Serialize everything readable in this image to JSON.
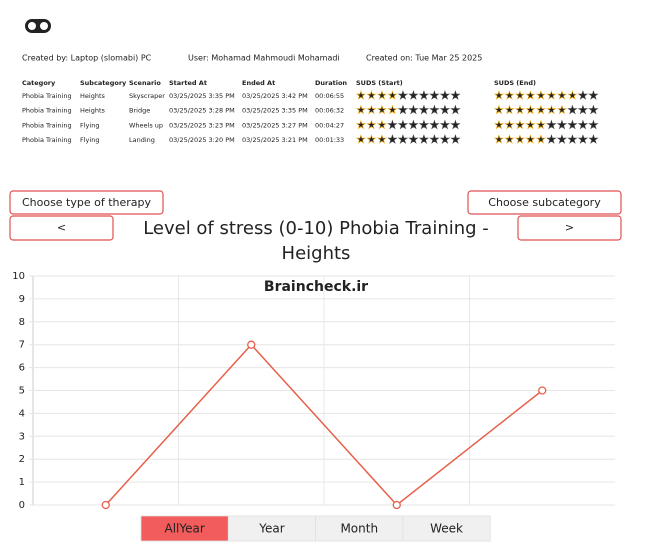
{
  "header": {
    "created_by": "Created by: Laptop (slomabi) PC",
    "user": "User: Mohamad Mahmoudi Mohamadi",
    "created_on": "Created on: Tue Mar 25 2025"
  },
  "table": {
    "columns": [
      "Category",
      "Subcategory",
      "Scenario",
      "Started At",
      "Ended At",
      "Duration",
      "SUDS (Start)",
      "SUDS (End)"
    ],
    "rows": [
      [
        "Phobia Training",
        "Heights",
        "Skyscraper",
        "03/25/2025 3:35 PM",
        "03/25/2025 3:42 PM",
        "00:06:55",
        4,
        8
      ],
      [
        "Phobia Training",
        "Heights",
        "Bridge",
        "03/25/2025 3:28 PM",
        "03/25/2025 3:35 PM",
        "00:06:32",
        4,
        7
      ],
      [
        "Phobia Training",
        "Flying",
        "Wheels up",
        "03/25/2025 3:23 PM",
        "03/25/2025 3:27 PM",
        "00:04:27",
        3,
        5
      ],
      [
        "Phobia Training",
        "Flying",
        "Landing",
        "03/25/2025 3:20 PM",
        "03/25/2025 3:21 PM",
        "00:01:33",
        3,
        5
      ]
    ],
    "stars": 10,
    "star_color": "#f2b01e"
  },
  "controls": {
    "therapy_button": "Choose type of therapy",
    "prev_button": "<",
    "subcategory_button": "Choose subcategory",
    "next_button": ">"
  },
  "chart_data": {
    "type": "line",
    "title": [
      "Level of stress (0-10) Phobia Training -",
      "Heights"
    ],
    "watermark": "Braincheck.ir",
    "categories": [
      null,
      null,
      null,
      null
    ],
    "values": [
      0,
      7,
      0,
      5
    ],
    "color": "#e8604c",
    "ylim": [
      0,
      10
    ],
    "yticks": [
      0,
      1,
      2,
      3,
      4,
      5,
      6,
      7,
      8,
      9,
      10
    ],
    "grid": true
  },
  "period_tabs": {
    "options": [
      "AllYear",
      "Year",
      "Month",
      "Week"
    ],
    "active": 0
  }
}
